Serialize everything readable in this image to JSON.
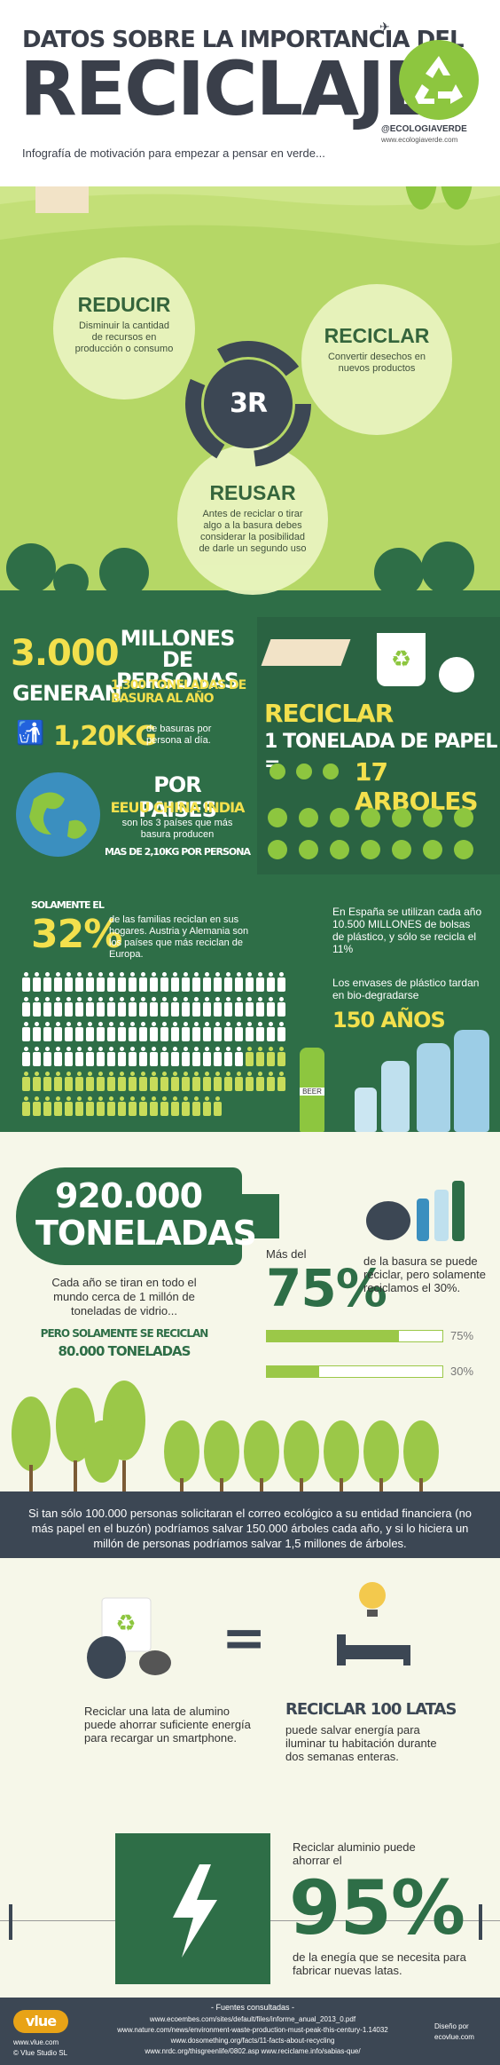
{
  "header": {
    "line1": "DATOS SOBRE LA IMPORTANCIA DEL",
    "line2": "RECICLAJE",
    "subtitle": "Infografía de motivación para empezar a pensar en verde...",
    "brand_handle": "@ECOLOGIAVERDE",
    "brand_url": "www.ecologiaverde.com"
  },
  "three_r": {
    "hub": "3R",
    "reducir": {
      "title": "REDUCIR",
      "text": "Disminuir la cantidad de recursos en producción o consumo"
    },
    "reciclar": {
      "title": "RECICLAR",
      "text": "Convertir desechos en nuevos productos"
    },
    "reusar": {
      "title": "REUSAR",
      "text": "Antes de reciclar o tirar algo a la basura debes considerar la posibilidad de darle un segundo uso"
    }
  },
  "stats": {
    "millones_num": "3.000",
    "millones_label": "MILLONES DE PERSONAS",
    "generan": "GENERAN",
    "toneladas": "1.300 TONELADAS DE BASURA AL AÑO",
    "kg": "1,20KG",
    "kg_text": "de basuras por persona al día.",
    "paises_title": "POR PAISES",
    "paises_list": "EEUU CHINA INDIA",
    "paises_text": "son los 3 países que más basura producen",
    "paises_kg": "MAS DE 2,10KG POR PERSONA",
    "reciclar": "RECICLAR",
    "papel": "1 TONELADA DE PAPEL =",
    "arboles": "17 ARBOLES",
    "solamente": "SOLAMENTE EL",
    "pct32": "32%",
    "pct32_text": "de las familias reciclan en sus hogares. Austria y Alemania son los países que más reciclan de Europa.",
    "espana": "En España se utilizan cada año 10.500 MILLONES de bolsas de plástico, y sólo se recicla el 11%",
    "envases": "Los envases de plástico tardan en bio-degradarse",
    "anos": "150 AÑOS",
    "beer": "BEER"
  },
  "vidrio": {
    "num": "920.000",
    "unit": "TONELADAS",
    "text": "Cada año se tiran en todo el mundo cerca de 1 millón de toneladas de vidrio...",
    "pero": "PERO SOLAMENTE SE RECICLAN",
    "recicladas": "80.000 TONELADAS",
    "mas_del": "Más del",
    "pct75": "75%",
    "pct_text": "de la basura se puede reciclar, pero solamente reciclamos el 30%.",
    "bar1_label": "75%",
    "bar1_value": 0.75,
    "bar2_label": "30%",
    "bar2_value": 0.3
  },
  "banner": "Si tan sólo 100.000 personas solicitaran el correo ecológico a su entidad financiera (no más papel en el buzón) podríamos salvar 150.000 árboles cada año, y si lo hiciera un millón de personas podríamos salvar 1,5 millones de árboles.",
  "energy": {
    "equals": "=",
    "lata_text": "Reciclar una lata de alumino puede ahorrar suficiente energía para recargar un smartphone.",
    "latas_title": "RECICLAR 100 LATAS",
    "latas_text": "puede salvar energía para iluminar tu habitación durante dos semanas enteras."
  },
  "aluminio": {
    "intro": "Reciclar aluminio puede ahorrar el",
    "pct": "95%",
    "text": "de la enegía que se necesita para fabricar nuevas latas."
  },
  "footer": {
    "fuentes": "- Fuentes consultadas -",
    "src1": "www.ecoembes.com/sites/default/files/informe_anual_2013_0.pdf",
    "src2": "www.nature.com/news/environment-waste-production-must-peak-this-century-1.14032",
    "src3": "www.dosomething.org/facts/11-facts-about-recycling",
    "src4": "www.nrdc.org/thisgreenlife/0802.asp   www.reciclame.info/sabias-que/",
    "vlue": "vlue",
    "vlue_url": "www.vlue.com",
    "vlue_studio": "© Vlue Studio SL",
    "diseno": "Diseño por",
    "diseno_url": "ecovlue.com"
  }
}
